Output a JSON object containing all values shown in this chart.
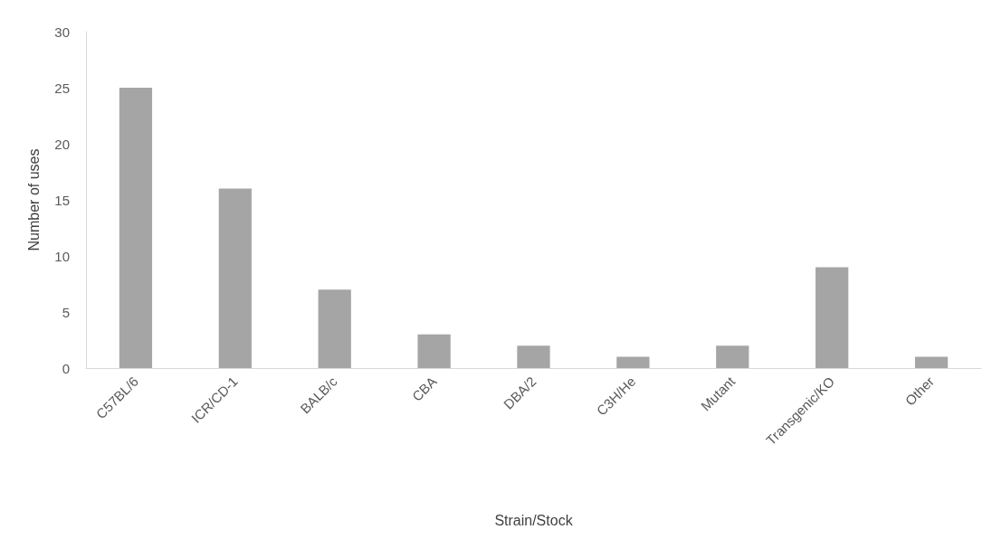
{
  "chart_data": {
    "type": "bar",
    "xlabel": "Strain/Stock",
    "ylabel": "Number of uses",
    "categories": [
      "C57BL/6",
      "ICR/CD-1",
      "BALB/c",
      "CBA",
      "DBA/2",
      "C3H/He",
      "Mutant",
      "Transgenic/KO",
      "Other"
    ],
    "values": [
      25,
      16,
      7,
      3,
      2,
      1,
      2,
      9,
      1
    ],
    "color": "#a5a5a5",
    "ylim": [
      0,
      30
    ],
    "yticks": [
      0,
      5,
      10,
      15,
      20,
      25,
      30
    ],
    "grid": false
  }
}
